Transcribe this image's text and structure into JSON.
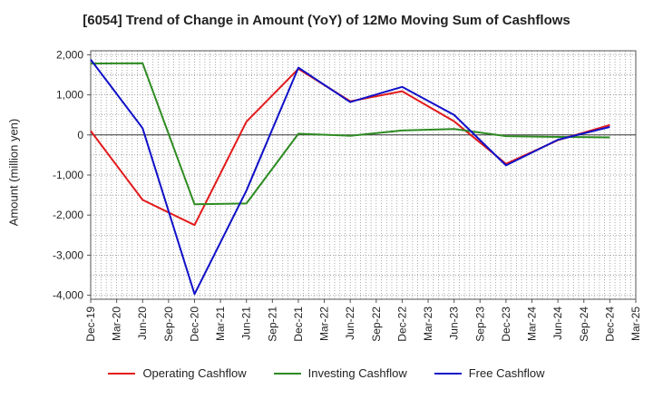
{
  "chart_data": {
    "type": "line",
    "title": "[6054]  Trend of Change in Amount (YoY) of 12Mo Moving Sum of Cashflows",
    "xlabel": "",
    "ylabel": "Amount (million yen)",
    "ylim": [
      -4100,
      2100
    ],
    "yticks": [
      2000,
      1000,
      0,
      -1000,
      -2000,
      -3000,
      -4000
    ],
    "ytick_labels": [
      "2,000",
      "1,000",
      "0",
      "-1,000",
      "-2,000",
      "-3,000",
      "-4,000"
    ],
    "x_labels": [
      "Dec-19",
      "Mar-20",
      "Jun-20",
      "Sep-20",
      "Dec-20",
      "Mar-21",
      "Jun-21",
      "Sep-21",
      "Dec-21",
      "Mar-22",
      "Jun-22",
      "Sep-22",
      "Dec-22",
      "Mar-23",
      "Jun-23",
      "Sep-23",
      "Dec-23",
      "Mar-24",
      "Jun-24",
      "Sep-24",
      "Dec-24",
      "Mar-25"
    ],
    "grid": true,
    "legend_position": "bottom",
    "series": [
      {
        "name": "Operating Cashflow",
        "color": "#e31a1c",
        "points": [
          {
            "x": 0,
            "y": 100
          },
          {
            "x": 2,
            "y": -1620
          },
          {
            "x": 4,
            "y": -2250
          },
          {
            "x": 6,
            "y": 330
          },
          {
            "x": 8,
            "y": 1650
          },
          {
            "x": 10,
            "y": 840
          },
          {
            "x": 12,
            "y": 1090
          },
          {
            "x": 14,
            "y": 340
          },
          {
            "x": 16,
            "y": -720
          },
          {
            "x": 18,
            "y": -130
          },
          {
            "x": 20,
            "y": 250
          }
        ]
      },
      {
        "name": "Investing Cashflow",
        "color": "#2e8b22",
        "points": [
          {
            "x": 0,
            "y": 1780
          },
          {
            "x": 2,
            "y": 1790
          },
          {
            "x": 4,
            "y": -1730
          },
          {
            "x": 6,
            "y": -1710
          },
          {
            "x": 8,
            "y": 30
          },
          {
            "x": 10,
            "y": -20
          },
          {
            "x": 12,
            "y": 110
          },
          {
            "x": 14,
            "y": 150
          },
          {
            "x": 16,
            "y": -30
          },
          {
            "x": 18,
            "y": -50
          },
          {
            "x": 20,
            "y": -60
          }
        ]
      },
      {
        "name": "Free Cashflow",
        "color": "#1010c8",
        "points": [
          {
            "x": 0,
            "y": 1880
          },
          {
            "x": 2,
            "y": 170
          },
          {
            "x": 4,
            "y": -3970
          },
          {
            "x": 6,
            "y": -1390
          },
          {
            "x": 8,
            "y": 1680
          },
          {
            "x": 10,
            "y": 820
          },
          {
            "x": 12,
            "y": 1200
          },
          {
            "x": 14,
            "y": 500
          },
          {
            "x": 16,
            "y": -760
          },
          {
            "x": 18,
            "y": -120
          },
          {
            "x": 20,
            "y": 200
          }
        ]
      }
    ]
  }
}
